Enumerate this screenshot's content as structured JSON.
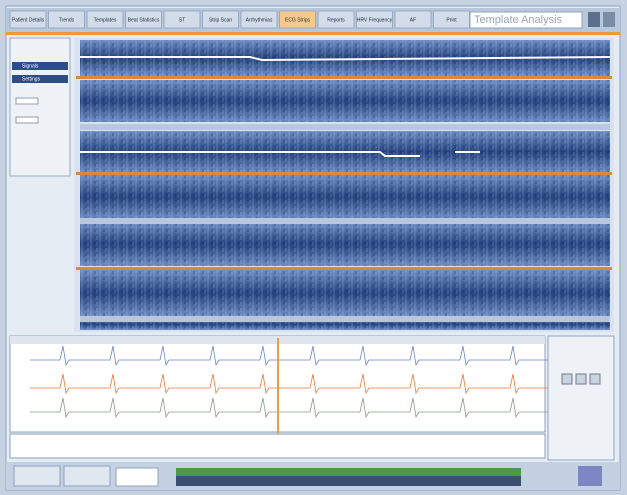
{
  "toolbar": {
    "tabs": [
      "Patient Details",
      "Trends",
      "Templates",
      "Beat Statistics",
      "ST",
      "Strip Scan",
      "Arrhythmias",
      "ECG Strips",
      "Reports",
      "HRV Frequency",
      "AF",
      "Print"
    ],
    "mode": "Template Analysis"
  },
  "left_panel": {
    "sections": [
      "Signals",
      "Settings"
    ]
  }
}
